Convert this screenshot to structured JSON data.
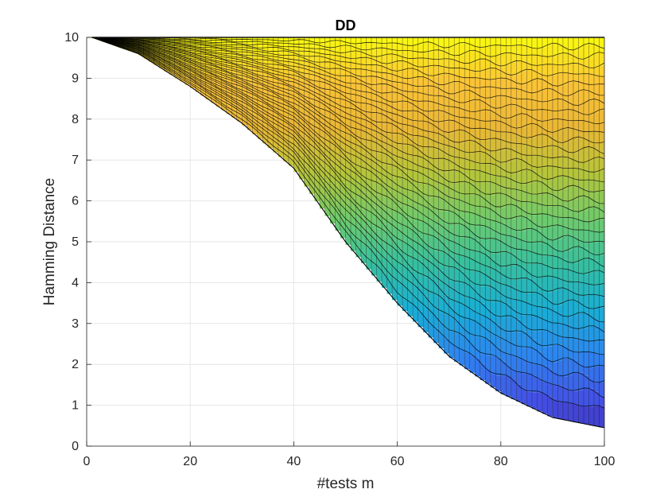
{
  "chart_data": {
    "type": "area",
    "title": "DD",
    "xlabel": "#tests m",
    "ylabel": "Hamming Distance",
    "xlim": [
      0,
      100
    ],
    "ylim": [
      0,
      10
    ],
    "xticks": [
      "0",
      "20",
      "40",
      "60",
      "80",
      "100"
    ],
    "yticks": [
      "0",
      "1",
      "2",
      "3",
      "4",
      "5",
      "6",
      "7",
      "8",
      "9",
      "10"
    ],
    "grid": true,
    "colormap": [
      "#3e26a8",
      "#4450e5",
      "#2d86f0",
      "#1aaed5",
      "#36c0a0",
      "#6fcb6c",
      "#b5c53a",
      "#eab735",
      "#fac337",
      "#f9fb0e"
    ],
    "envelope": {
      "x": [
        1,
        10,
        20,
        30,
        40,
        50,
        60,
        70,
        80,
        90,
        100
      ],
      "lower": [
        10.0,
        9.6,
        8.8,
        7.9,
        6.8,
        5.0,
        3.5,
        2.2,
        1.3,
        0.7,
        0.45
      ],
      "upper": [
        10.0,
        10.0,
        10.0,
        10.0,
        10.0,
        10.0,
        10.0,
        10.0,
        10.0,
        10.0,
        10.0
      ]
    }
  }
}
